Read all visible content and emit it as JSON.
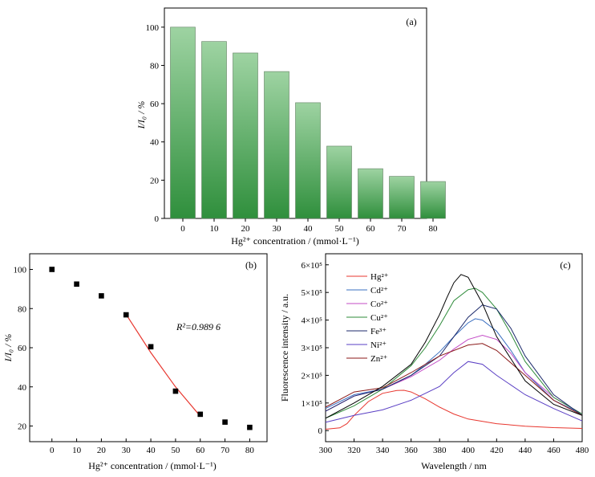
{
  "chart_data": [
    {
      "type": "bar",
      "panel_label": "(a)",
      "categories": [
        "0",
        "10",
        "20",
        "30",
        "40",
        "50",
        "60",
        "70",
        "80"
      ],
      "values": [
        100,
        92.5,
        86.5,
        76.8,
        60.5,
        37.8,
        26,
        22,
        19.3
      ],
      "xlabel": "Hg²⁺ concentration / (mmol·L⁻¹)",
      "ylabel": "I/I₀ / %",
      "ylim": [
        0,
        110
      ],
      "yticks": [
        "0",
        "20",
        "40",
        "60",
        "80",
        "100"
      ],
      "colors": {
        "bar_top": "#9ed3a2",
        "bar_bottom": "#2f8f3c"
      },
      "grid": false
    },
    {
      "type": "scatter",
      "panel_label": "(b)",
      "x": [
        0,
        10,
        20,
        30,
        40,
        50,
        60,
        70,
        80
      ],
      "y": [
        100,
        92.5,
        86.5,
        76.8,
        60.5,
        37.8,
        26,
        22,
        19.3
      ],
      "fit": {
        "x": [
          30,
          40,
          50,
          60
        ],
        "y": [
          77,
          57.5,
          40,
          25
        ],
        "color": "#e8372f"
      },
      "annotation": "R²=0.989 6",
      "xticks": [
        "0",
        "10",
        "20",
        "30",
        "40",
        "50",
        "60",
        "70",
        "80"
      ],
      "yticks": [
        "20",
        "40",
        "60",
        "80",
        "100"
      ],
      "xlim": [
        -9,
        87
      ],
      "ylim": [
        12,
        108
      ],
      "xlabel": "Hg²⁺ concentration / (mmol·L⁻¹)",
      "ylabel": "I/I₀ / %",
      "grid": false
    },
    {
      "type": "line",
      "panel_label": "(c)",
      "xlabel": "Wavelength / nm",
      "ylabel": "Fluorescence intensity / a.u.",
      "xlim": [
        300,
        480
      ],
      "ylim": [
        -40000,
        640000
      ],
      "xticks": [
        "300",
        "320",
        "340",
        "360",
        "380",
        "400",
        "420",
        "440",
        "460",
        "480"
      ],
      "yticks": [
        "0",
        "1×10⁵",
        "2×10⁵",
        "3×10⁵",
        "4×10⁵",
        "5×10⁵",
        "6×10⁵"
      ],
      "legend_position": "top-left",
      "series": [
        {
          "name": "Hg²⁺",
          "color": "#e8372f",
          "x": [
            300,
            310,
            315,
            320,
            330,
            340,
            350,
            355,
            360,
            370,
            380,
            390,
            400,
            420,
            440,
            460,
            480
          ],
          "y": [
            5000,
            10000,
            25000,
            55000,
            105000,
            135000,
            145000,
            146000,
            140000,
            115000,
            85000,
            60000,
            42000,
            25000,
            16000,
            11000,
            8000
          ]
        },
        {
          "name": "Cd²⁺",
          "color": "#3a6fc0",
          "x": [
            300,
            320,
            340,
            360,
            370,
            380,
            390,
            400,
            405,
            410,
            420,
            430,
            440,
            460,
            480
          ],
          "y": [
            80000,
            130000,
            150000,
            200000,
            240000,
            285000,
            340000,
            390000,
            405000,
            400000,
            360000,
            290000,
            210000,
            110000,
            60000
          ]
        },
        {
          "name": "Co²⁺",
          "color": "#c34bc6",
          "x": [
            300,
            320,
            340,
            360,
            380,
            390,
            400,
            410,
            420,
            430,
            440,
            460,
            480
          ],
          "y": [
            70000,
            125000,
            150000,
            195000,
            255000,
            295000,
            330000,
            345000,
            330000,
            280000,
            210000,
            120000,
            60000
          ]
        },
        {
          "name": "Cu²⁺",
          "color": "#2e8b3a",
          "x": [
            300,
            320,
            340,
            360,
            370,
            380,
            390,
            400,
            405,
            410,
            420,
            430,
            440,
            460,
            480
          ],
          "y": [
            45000,
            90000,
            150000,
            235000,
            300000,
            380000,
            470000,
            510000,
            515000,
            500000,
            440000,
            350000,
            250000,
            120000,
            60000
          ]
        },
        {
          "name": "Fe³⁺",
          "color": "#1c2a6b",
          "x": [
            300,
            320,
            340,
            360,
            380,
            390,
            400,
            410,
            420,
            430,
            440,
            460,
            480
          ],
          "y": [
            70000,
            125000,
            150000,
            200000,
            270000,
            340000,
            410000,
            455000,
            440000,
            370000,
            270000,
            130000,
            55000
          ]
        },
        {
          "name": "Ni²⁺",
          "color": "#5a3fc4",
          "x": [
            300,
            320,
            340,
            360,
            380,
            390,
            400,
            410,
            420,
            440,
            460,
            480
          ],
          "y": [
            30000,
            55000,
            75000,
            110000,
            160000,
            210000,
            250000,
            240000,
            200000,
            130000,
            80000,
            35000
          ]
        },
        {
          "name": "Zn²⁺",
          "color": "#8b1a1a",
          "x": [
            300,
            320,
            340,
            360,
            380,
            400,
            410,
            420,
            440,
            460,
            480
          ],
          "y": [
            85000,
            140000,
            155000,
            210000,
            270000,
            310000,
            315000,
            290000,
            200000,
            110000,
            55000
          ]
        },
        {
          "name": "",
          "color": "#000000",
          "x": [
            300,
            320,
            340,
            360,
            370,
            380,
            385,
            390,
            395,
            400,
            410,
            420,
            440,
            460,
            480
          ],
          "y": [
            45000,
            100000,
            160000,
            240000,
            320000,
            420000,
            480000,
            535000,
            565000,
            555000,
            460000,
            340000,
            180000,
            95000,
            55000
          ]
        }
      ]
    }
  ]
}
